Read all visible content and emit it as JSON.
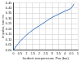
{
  "chart_data": {
    "type": "line",
    "x_label": "Incident overpressure, Pso (bar)",
    "y_label": "Impulse, bar·ms",
    "x": [
      0,
      0.5,
      1,
      1.5,
      2,
      2.5,
      3,
      3.5,
      4,
      4.5,
      4.7
    ],
    "values": [
      0,
      0.08,
      0.14,
      0.19,
      0.23,
      0.27,
      0.31,
      0.34,
      0.37,
      0.4,
      0.44
    ],
    "color": "#3a78c8",
    "xlim": [
      0,
      5
    ],
    "xticks": [
      0,
      0.5,
      1,
      1.5,
      2,
      2.5,
      3,
      3.5,
      4,
      4.5,
      5
    ],
    "ylim": [
      0,
      0.45
    ],
    "yticks": [
      {
        "value": 0,
        "label": "0.00"
      },
      0.05,
      {
        "value": 0.1,
        "label": "0.10"
      },
      0.15,
      {
        "value": 0.2,
        "label": "0.20"
      },
      0.25,
      {
        "value": 0.3,
        "label": "0.30"
      },
      0.35,
      {
        "value": 0.4,
        "label": "0.40"
      },
      0.45
    ],
    "grid": true
  }
}
